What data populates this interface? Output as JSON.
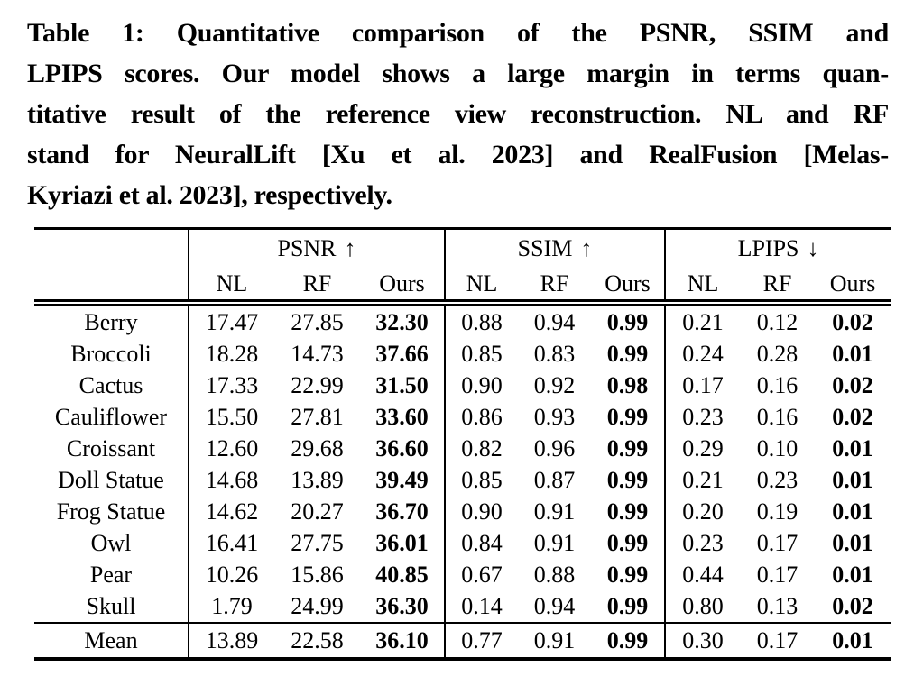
{
  "caption": {
    "text": "Table 1: Quantitative comparison of the PSNR, SSIM and LPIPS scores. Our model shows a large margin in terms quantitative result of the reference view reconstruction. NL and RF stand for NeuralLift [Xu et al. 2023] and RealFusion [Melas-Kyriazi et al. 2023], respectively.",
    "lines": [
      "Table 1: Quantitative comparison of the PSNR, SSIM and",
      "LPIPS scores. Our model shows a large margin in terms quan-",
      "titative result of the reference view reconstruction. NL and RF",
      "stand for NeuralLift [Xu et al. 2023] and RealFusion [Melas-",
      "Kyriazi et al. 2023], respectively."
    ]
  },
  "table": {
    "groups": [
      {
        "label": "PSNR",
        "arrow": "↑"
      },
      {
        "label": "SSIM",
        "arrow": "↑"
      },
      {
        "label": "LPIPS",
        "arrow": "↓"
      }
    ],
    "method_headers": [
      "NL",
      "RF",
      "Ours"
    ],
    "rows": [
      {
        "name": "Berry",
        "psnr": [
          "17.47",
          "27.85",
          "32.30"
        ],
        "ssim": [
          "0.88",
          "0.94",
          "0.99"
        ],
        "lpips": [
          "0.21",
          "0.12",
          "0.02"
        ]
      },
      {
        "name": "Broccoli",
        "psnr": [
          "18.28",
          "14.73",
          "37.66"
        ],
        "ssim": [
          "0.85",
          "0.83",
          "0.99"
        ],
        "lpips": [
          "0.24",
          "0.28",
          "0.01"
        ]
      },
      {
        "name": "Cactus",
        "psnr": [
          "17.33",
          "22.99",
          "31.50"
        ],
        "ssim": [
          "0.90",
          "0.92",
          "0.98"
        ],
        "lpips": [
          "0.17",
          "0.16",
          "0.02"
        ]
      },
      {
        "name": "Cauliflower",
        "psnr": [
          "15.50",
          "27.81",
          "33.60"
        ],
        "ssim": [
          "0.86",
          "0.93",
          "0.99"
        ],
        "lpips": [
          "0.23",
          "0.16",
          "0.02"
        ]
      },
      {
        "name": "Croissant",
        "psnr": [
          "12.60",
          "29.68",
          "36.60"
        ],
        "ssim": [
          "0.82",
          "0.96",
          "0.99"
        ],
        "lpips": [
          "0.29",
          "0.10",
          "0.01"
        ]
      },
      {
        "name": "Doll Statue",
        "psnr": [
          "14.68",
          "13.89",
          "39.49"
        ],
        "ssim": [
          "0.85",
          "0.87",
          "0.99"
        ],
        "lpips": [
          "0.21",
          "0.23",
          "0.01"
        ]
      },
      {
        "name": "Frog Statue",
        "psnr": [
          "14.62",
          "20.27",
          "36.70"
        ],
        "ssim": [
          "0.90",
          "0.91",
          "0.99"
        ],
        "lpips": [
          "0.20",
          "0.19",
          "0.01"
        ]
      },
      {
        "name": "Owl",
        "psnr": [
          "16.41",
          "27.75",
          "36.01"
        ],
        "ssim": [
          "0.84",
          "0.91",
          "0.99"
        ],
        "lpips": [
          "0.23",
          "0.17",
          "0.01"
        ]
      },
      {
        "name": "Pear",
        "psnr": [
          "10.26",
          "15.86",
          "40.85"
        ],
        "ssim": [
          "0.67",
          "0.88",
          "0.99"
        ],
        "lpips": [
          "0.44",
          "0.17",
          "0.01"
        ]
      },
      {
        "name": "Skull",
        "psnr": [
          "1.79",
          "24.99",
          "36.30"
        ],
        "ssim": [
          "0.14",
          "0.94",
          "0.99"
        ],
        "lpips": [
          "0.80",
          "0.13",
          "0.02"
        ]
      }
    ],
    "mean_row": {
      "name": "Mean",
      "psnr": [
        "13.89",
        "22.58",
        "36.10"
      ],
      "ssim": [
        "0.77",
        "0.91",
        "0.99"
      ],
      "lpips": [
        "0.30",
        "0.17",
        "0.01"
      ]
    }
  }
}
